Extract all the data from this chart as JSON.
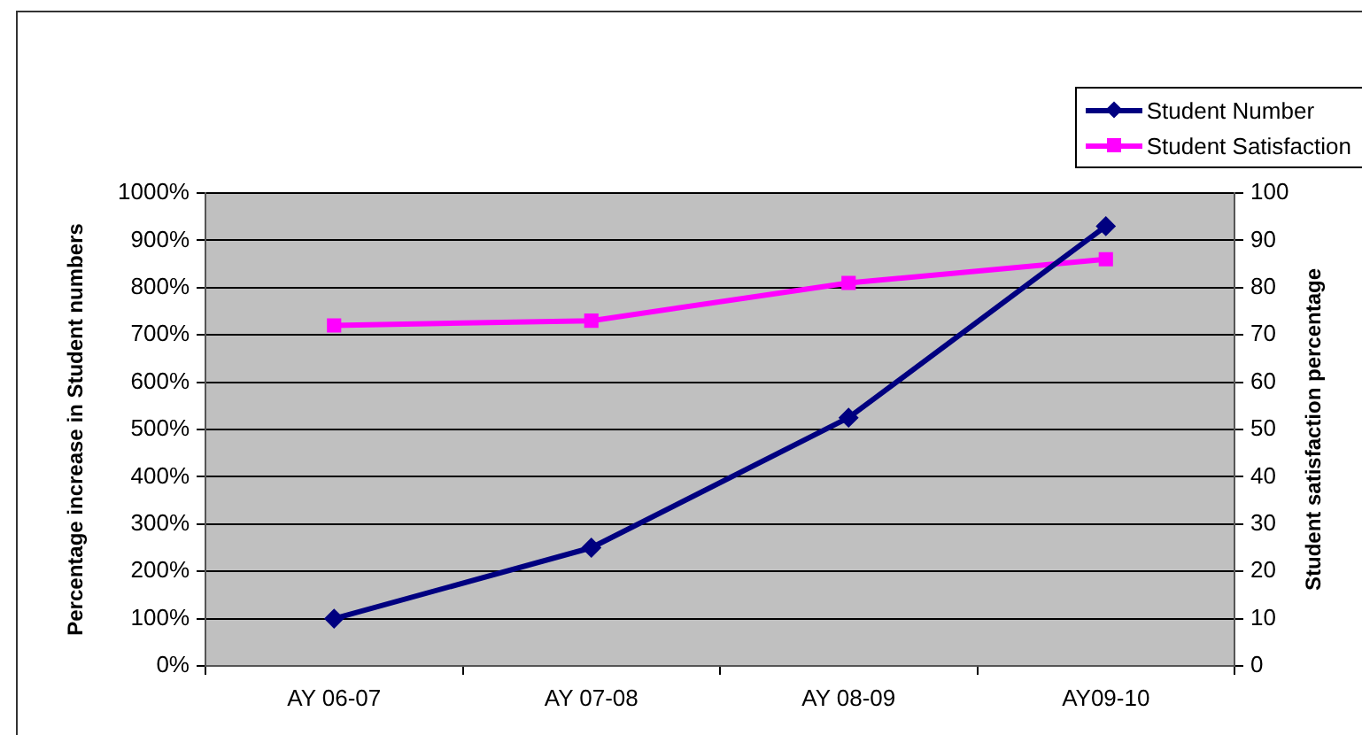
{
  "chart_data": {
    "type": "line",
    "categories": [
      "AY 06-07",
      "AY 07-08",
      "AY 08-09",
      "AY09-10"
    ],
    "ylabel": "Percentage increase in Student numbers",
    "y2label": "Student satisfaction percentage",
    "ylim": [
      0,
      1000
    ],
    "yticks": [
      {
        "value": 0,
        "label": "0%"
      },
      {
        "value": 100,
        "label": "100%"
      },
      {
        "value": 200,
        "label": "200%"
      },
      {
        "value": 300,
        "label": "300%"
      },
      {
        "value": 400,
        "label": "400%"
      },
      {
        "value": 500,
        "label": "500%"
      },
      {
        "value": 600,
        "label": "600%"
      },
      {
        "value": 700,
        "label": "700%"
      },
      {
        "value": 800,
        "label": "800%"
      },
      {
        "value": 900,
        "label": "900%"
      },
      {
        "value": 1000,
        "label": "1000%"
      }
    ],
    "y2lim": [
      0,
      100
    ],
    "y2ticks": [
      0,
      10,
      20,
      30,
      40,
      50,
      60,
      70,
      80,
      90,
      100
    ],
    "grid": "y",
    "legend": "top right",
    "line_style": "solid",
    "series": [
      {
        "name": "Student Number",
        "color": "#000080",
        "marker": "diamond",
        "values": [
          100,
          250,
          525,
          930
        ]
      },
      {
        "name": "Student Satisfaction",
        "color": "#ff00ff",
        "marker": "square",
        "axis": "y2",
        "values": [
          72,
          73,
          81,
          86
        ]
      }
    ]
  }
}
